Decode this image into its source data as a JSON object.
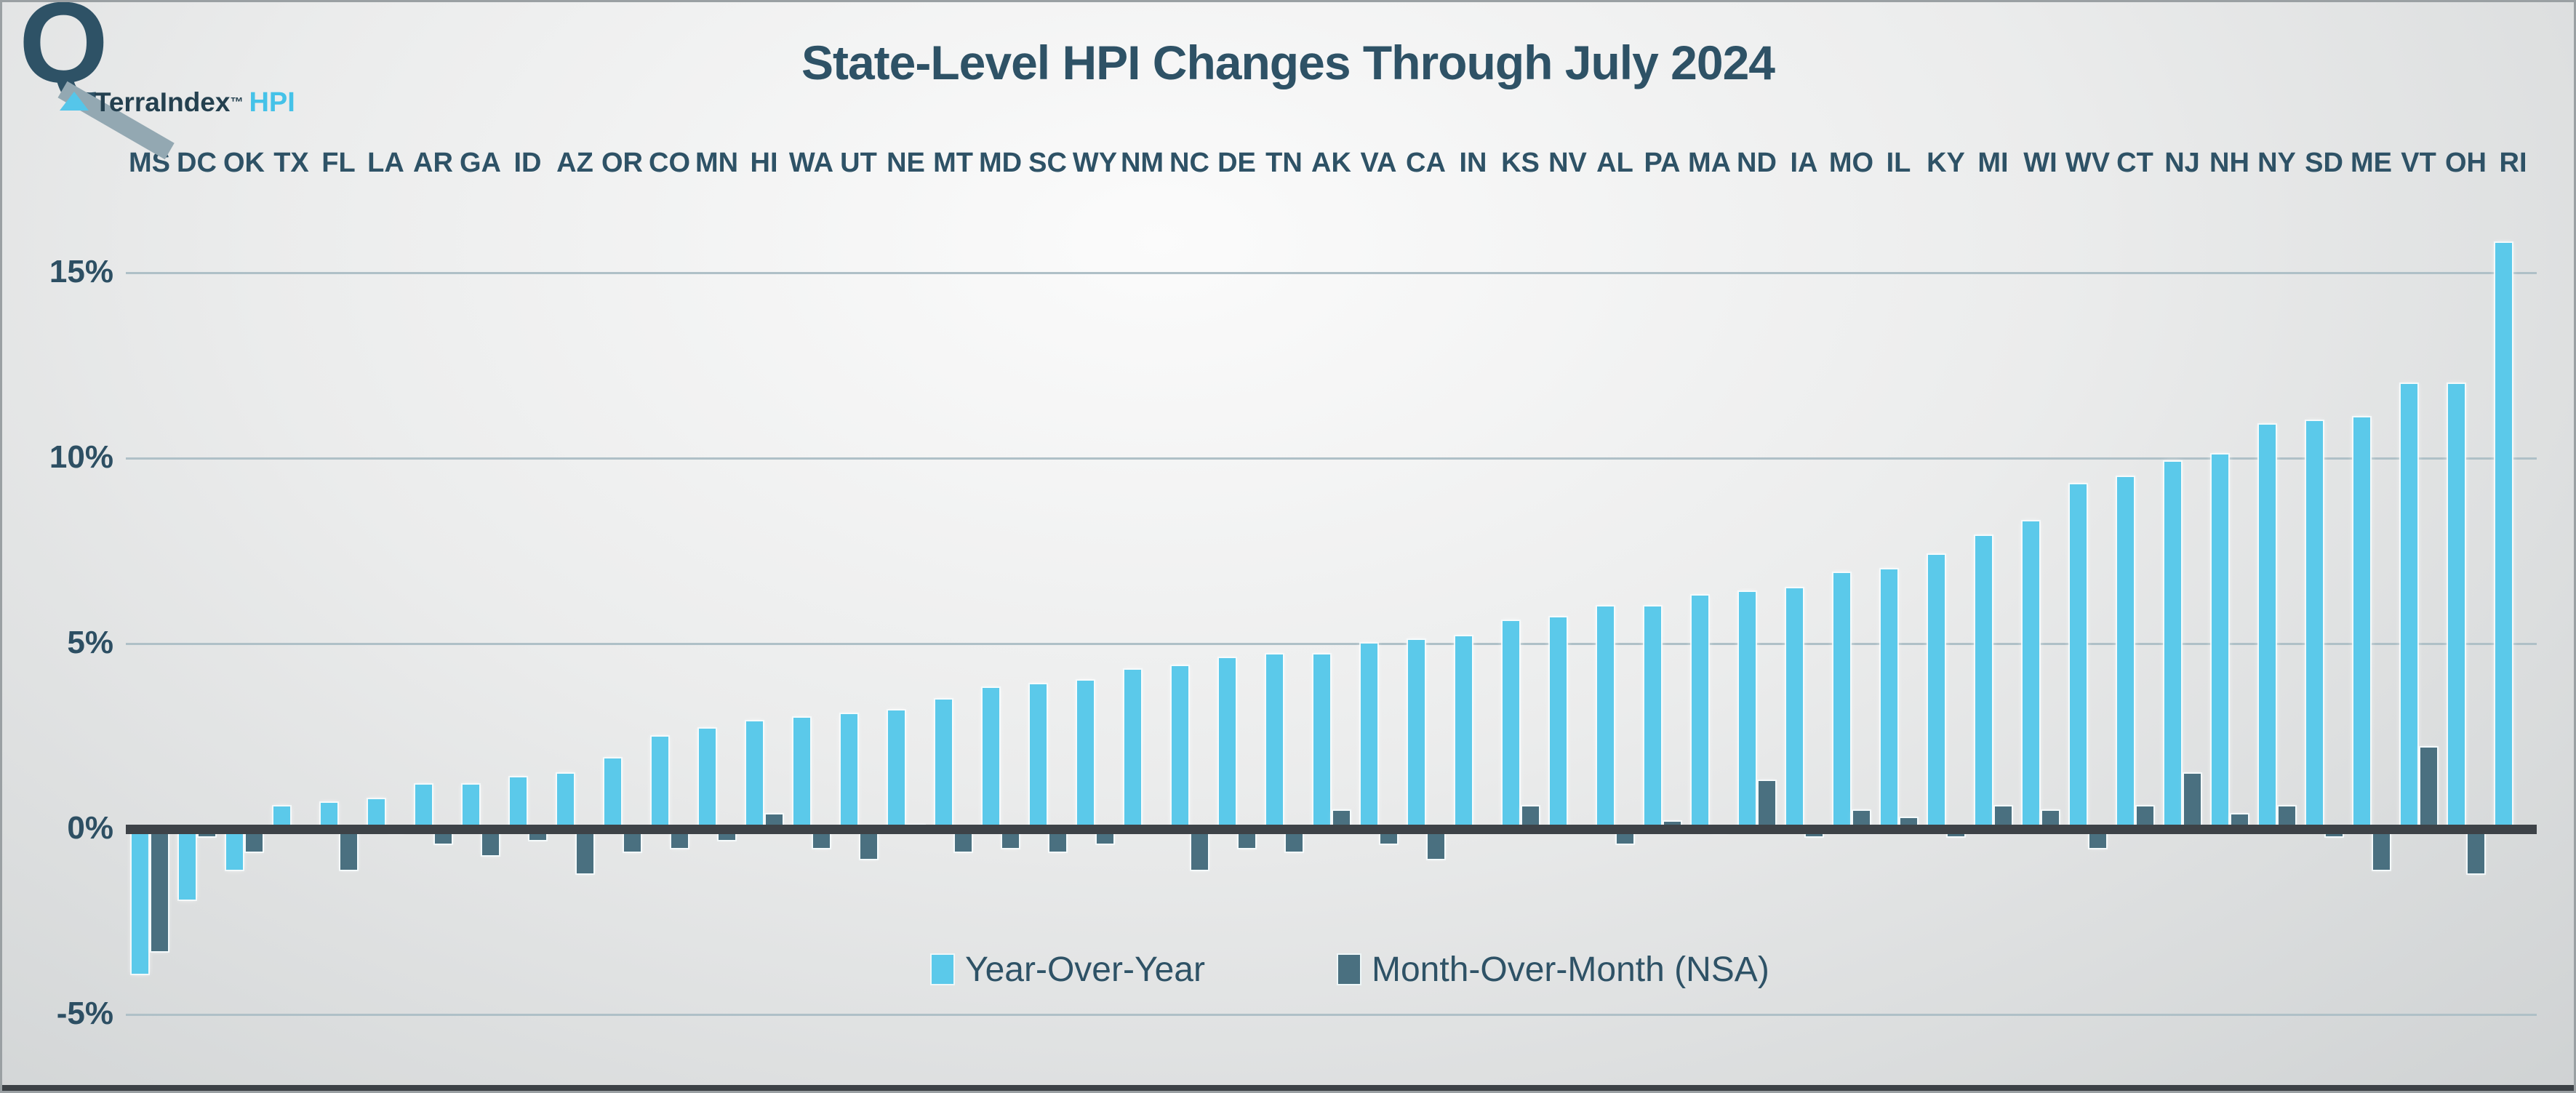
{
  "header": {
    "logo": {
      "mark": "Q",
      "brand": "TerraIndex",
      "tm": "™",
      "suffix": "HPI"
    },
    "title": "State-Level HPI Changes Through July 2024"
  },
  "legend": [
    {
      "label": "Year-Over-Year",
      "color": "#5bc9ea"
    },
    {
      "label": "Month-Over-Month (NSA)",
      "color": "#4a7080"
    }
  ],
  "colors": {
    "yoy_bar": "#5bc9ea",
    "mom_bar": "#4a7080",
    "axis_line": "#3d4247",
    "gridline": "#afc0c7",
    "text": "#2e5266"
  },
  "chart_data": {
    "type": "bar",
    "title": "State-Level HPI Changes Through July 2024",
    "xlabel": "",
    "ylabel": "",
    "ylim": [
      -5.5,
      16.5
    ],
    "grid": true,
    "legend_position": "bottom-center",
    "y_ticks": [
      {
        "label": "15%",
        "value": 15
      },
      {
        "label": "10%",
        "value": 10
      },
      {
        "label": "5%",
        "value": 5
      },
      {
        "label": "0%",
        "value": 0
      },
      {
        "label": "-5%",
        "value": -5
      }
    ],
    "categories": [
      "MS",
      "DC",
      "OK",
      "TX",
      "FL",
      "LA",
      "AR",
      "GA",
      "ID",
      "AZ",
      "OR",
      "CO",
      "MN",
      "HI",
      "WA",
      "UT",
      "NE",
      "MT",
      "MD",
      "SC",
      "WY",
      "NM",
      "NC",
      "DE",
      "TN",
      "AK",
      "VA",
      "CA",
      "IN",
      "KS",
      "NV",
      "AL",
      "PA",
      "MA",
      "ND",
      "IA",
      "MO",
      "IL",
      "KY",
      "MI",
      "WI",
      "WV",
      "CT",
      "NJ",
      "NH",
      "NY",
      "SD",
      "ME",
      "VT",
      "OH",
      "RI"
    ],
    "series": [
      {
        "name": "Year-Over-Year",
        "color": "#5bc9ea",
        "values": [
          -3.9,
          -1.9,
          -1.1,
          0.6,
          0.7,
          0.8,
          1.2,
          1.2,
          1.4,
          1.5,
          1.9,
          2.5,
          2.7,
          2.9,
          3.0,
          3.1,
          3.2,
          3.5,
          3.8,
          3.9,
          4.0,
          4.3,
          4.4,
          4.6,
          4.7,
          4.7,
          5.0,
          5.1,
          5.2,
          5.6,
          5.7,
          6.0,
          6.0,
          6.3,
          6.4,
          6.5,
          6.9,
          7.0,
          7.4,
          7.9,
          8.3,
          9.3,
          9.5,
          9.9,
          10.1,
          10.9,
          11.0,
          11.1,
          12.0,
          12.0,
          15.8
        ]
      },
      {
        "name": "Month-Over-Month (NSA)",
        "color": "#4a7080",
        "values": [
          -3.3,
          -0.2,
          -0.6,
          0,
          -1.1,
          -0.1,
          -0.4,
          -0.7,
          -0.3,
          -1.2,
          -0.6,
          -0.5,
          -0.3,
          0.4,
          -0.5,
          -0.8,
          0.1,
          -0.6,
          -0.5,
          -0.6,
          -0.4,
          0,
          -1.1,
          -0.5,
          -0.6,
          0.5,
          -0.4,
          -0.8,
          0,
          0.6,
          0,
          -0.4,
          0.2,
          -0.1,
          1.3,
          -0.2,
          0.5,
          0.3,
          -0.2,
          0.6,
          0.5,
          -0.5,
          0.6,
          1.5,
          0.4,
          0.6,
          -0.2,
          -1.1,
          2.2,
          -1.2,
          0
        ]
      }
    ]
  }
}
